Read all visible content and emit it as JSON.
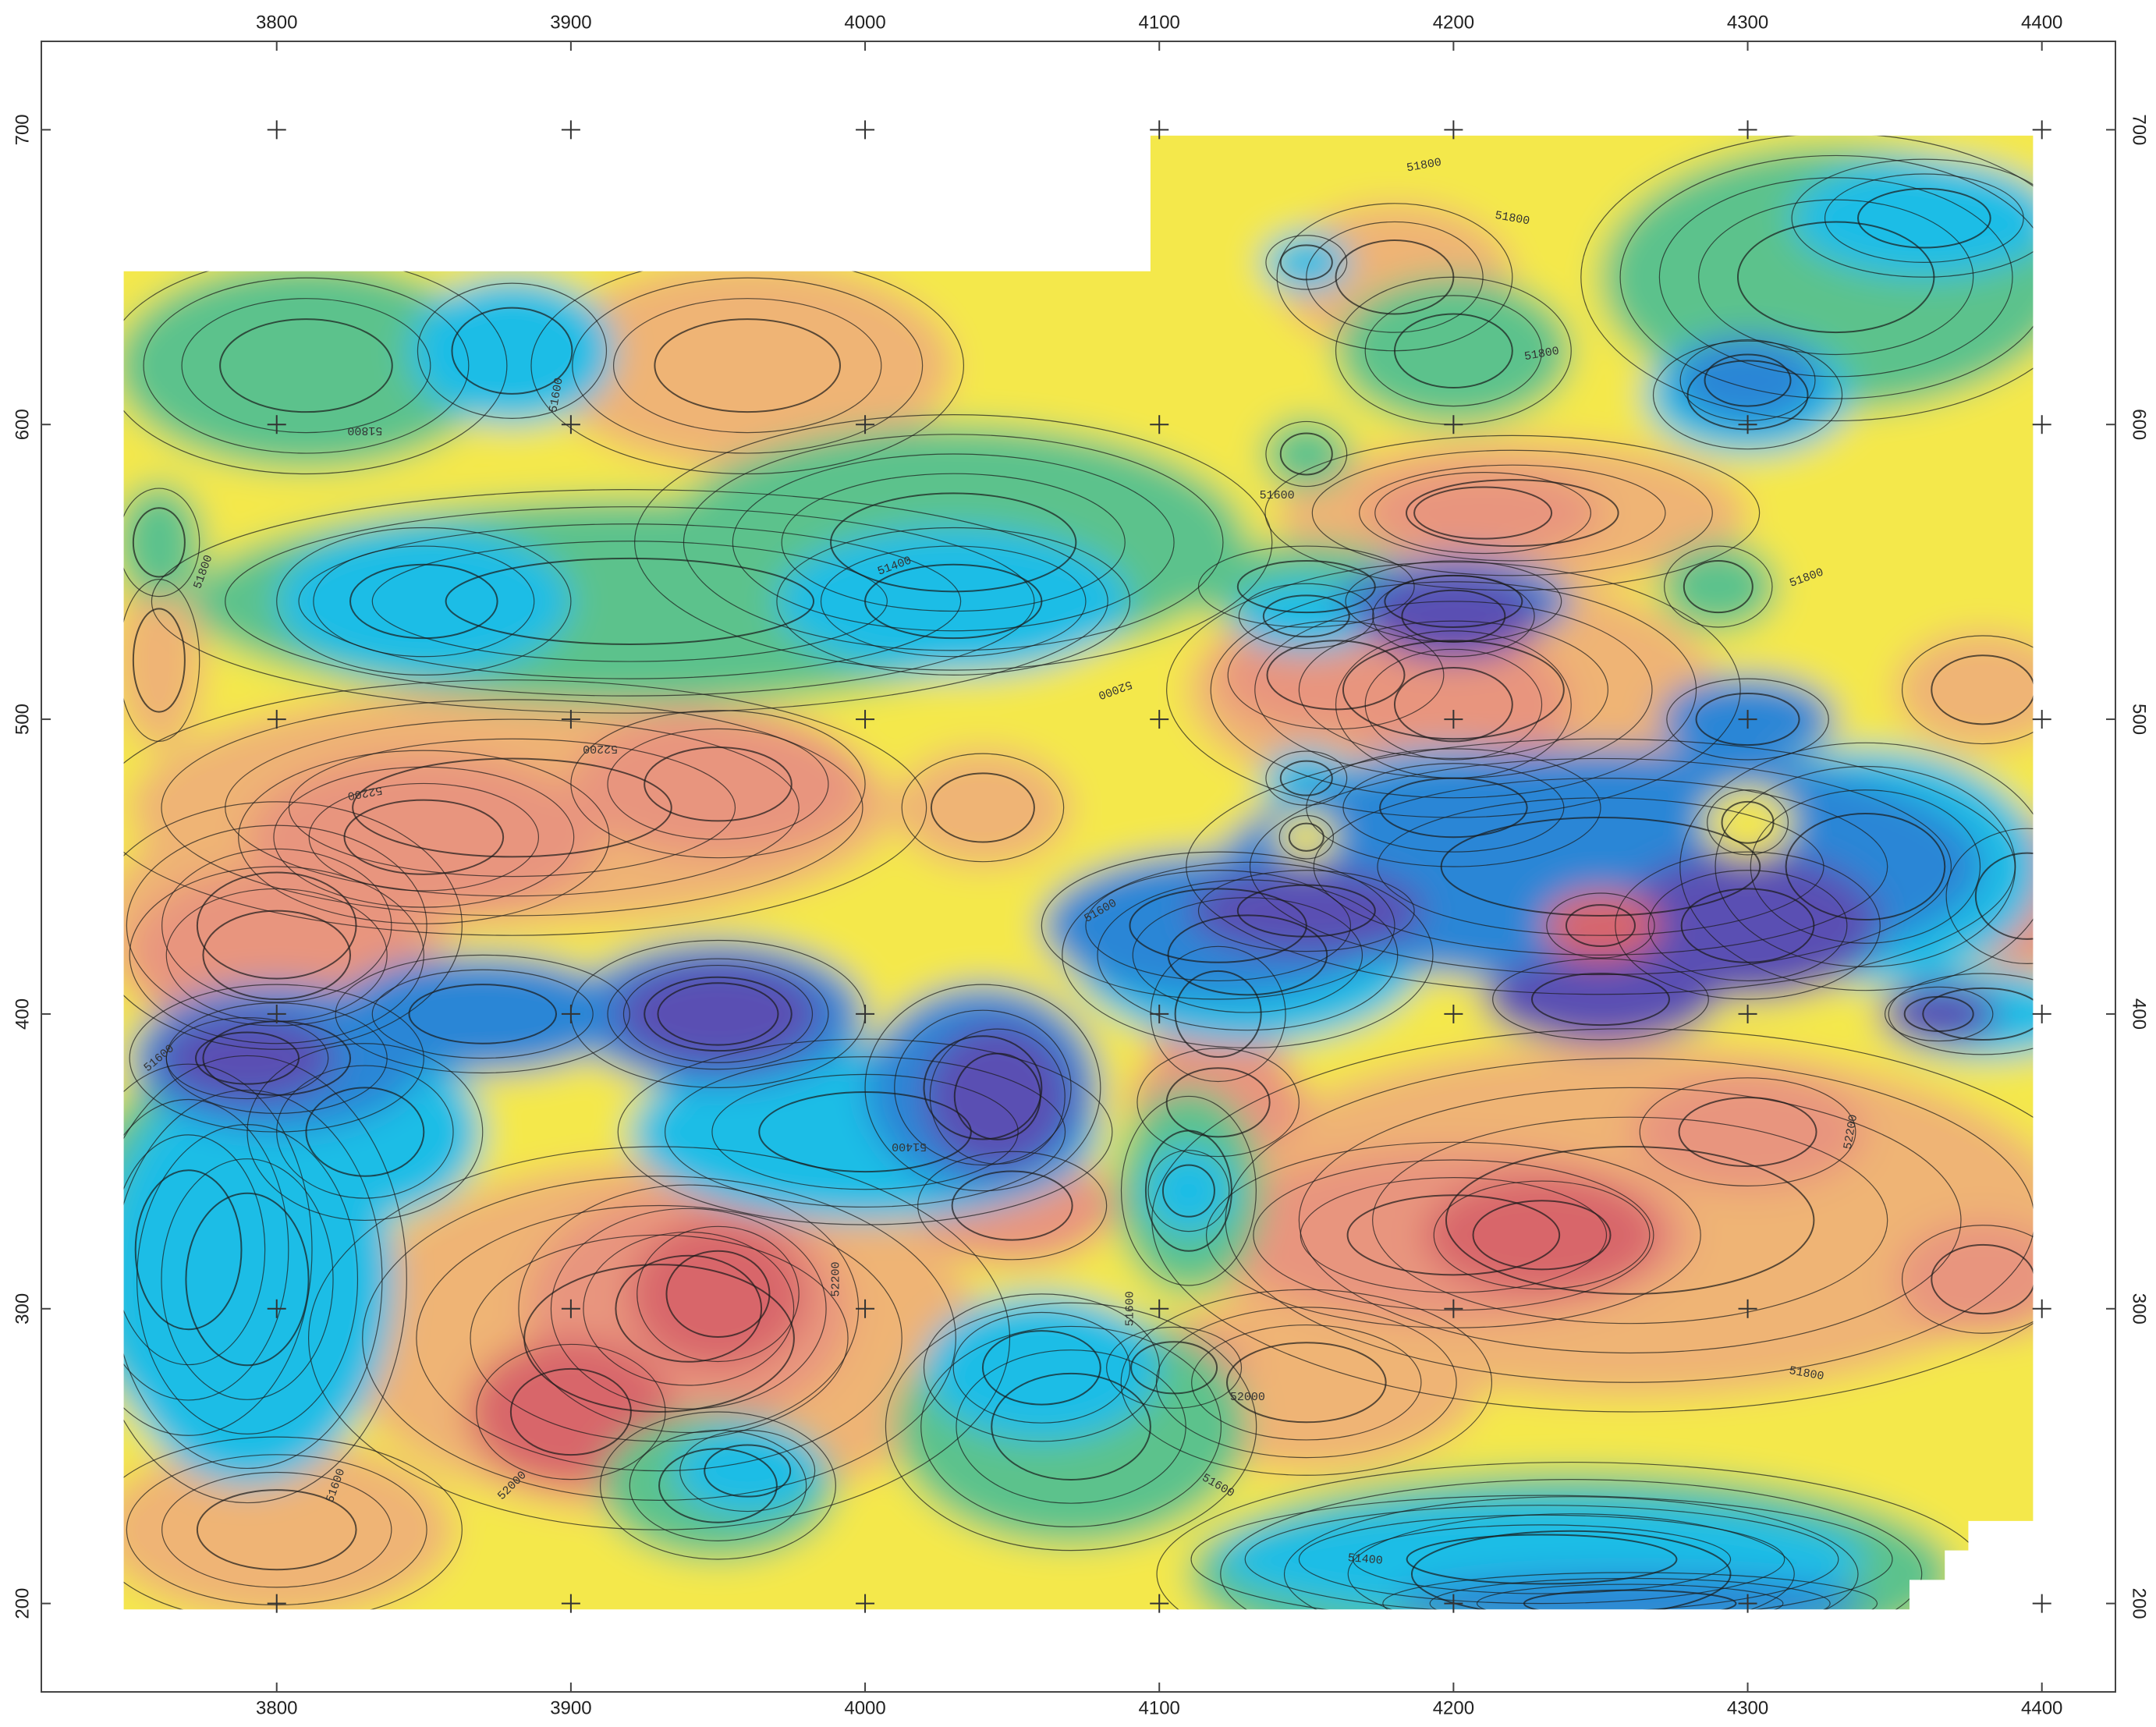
{
  "chart_data": {
    "type": "contour",
    "xlim": [
      3720,
      4425
    ],
    "ylim": [
      170,
      730
    ],
    "xticks": [
      3800,
      3900,
      4000,
      4100,
      4200,
      4300,
      4400
    ],
    "yticks": [
      200,
      300,
      400,
      500,
      600,
      700
    ],
    "contour_levels": [
      51400,
      51600,
      51800,
      52000,
      52200
    ],
    "color_scale": [
      "#5a4fb3",
      "#2a86d6",
      "#1ebde6",
      "#5cc28c",
      "#f4e84c",
      "#efb474",
      "#e8957e",
      "#d8666a"
    ],
    "grid": true
  }
}
